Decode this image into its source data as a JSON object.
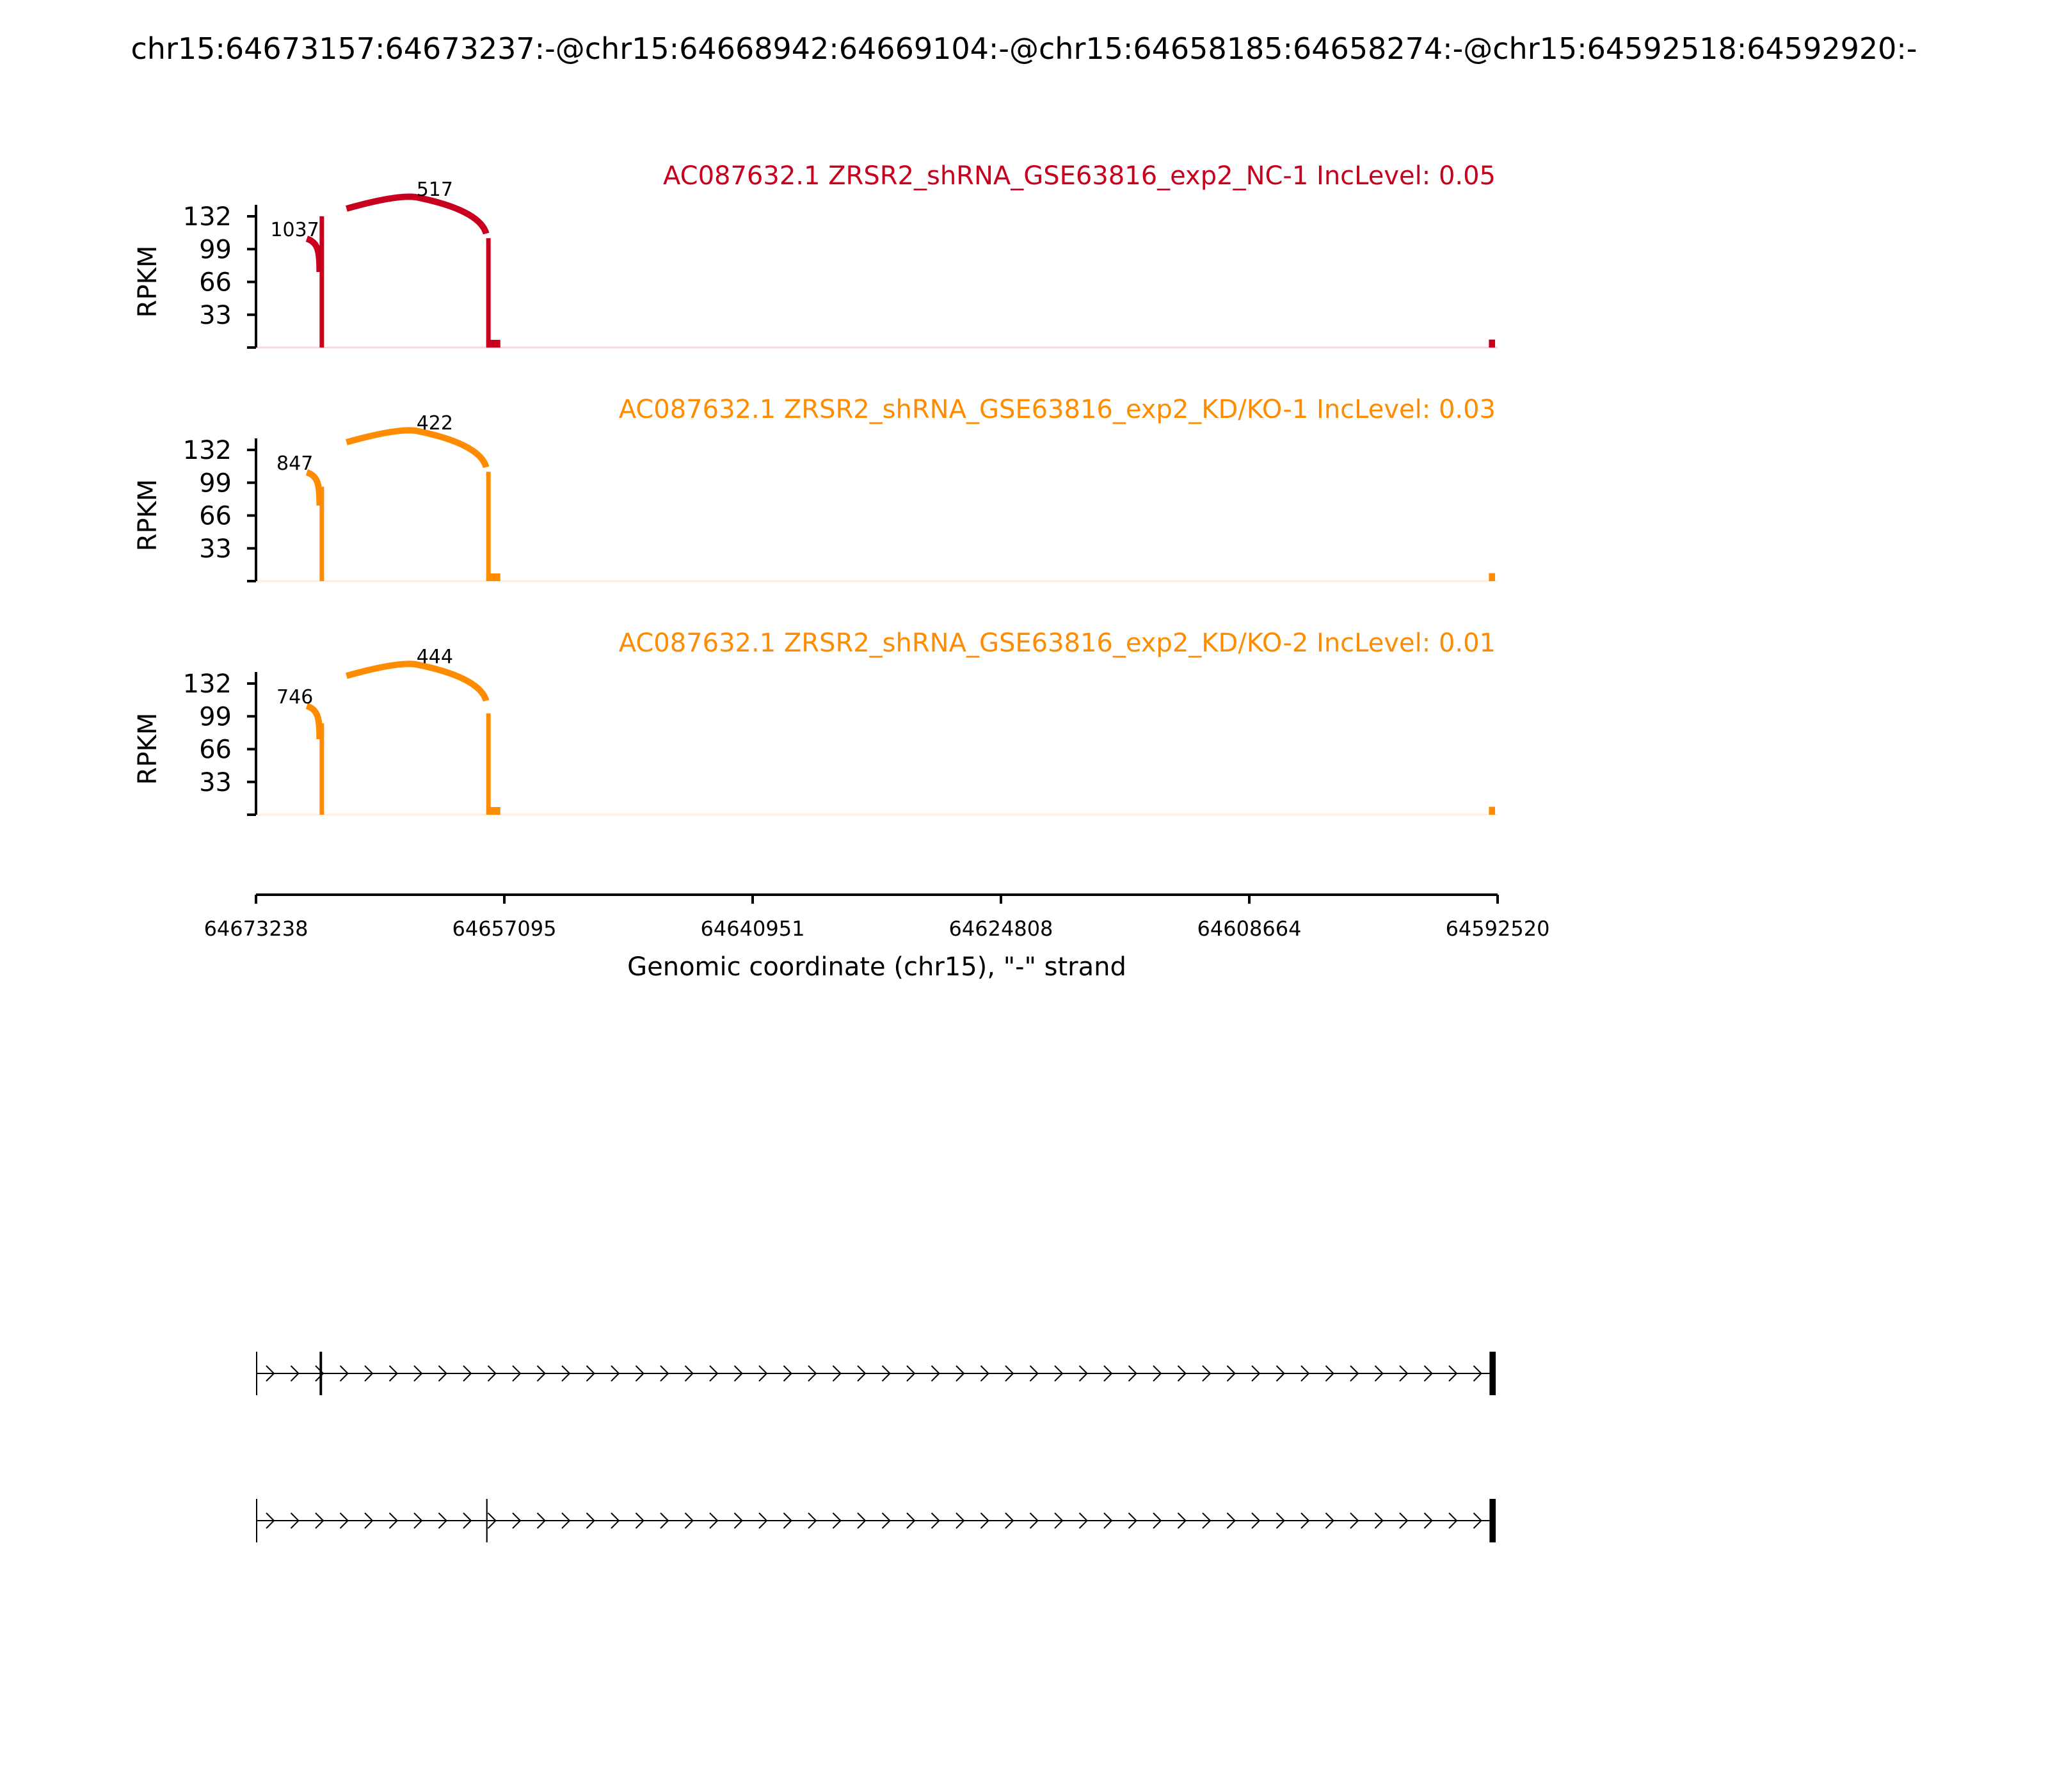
{
  "figure_title": "chr15:64673157:64673237:-@chr15:64668942:64669104:-@chr15:64658185:64658274:-@chr15:64592518:64592920:-",
  "chart_data": {
    "type": "area",
    "title": "chr15:64673157:64673237:-@chr15:64668942:64669104:-@chr15:64658185:64658274:-@chr15:64592518:64592920:-",
    "xlabel": "Genomic coordinate (chr15), \"-\" strand",
    "ylabel": "RPKM",
    "x_ticks": [
      "64673238",
      "64657095",
      "64640951",
      "64624808",
      "64608664",
      "64592520"
    ],
    "xlim": [
      64673238,
      64592520
    ],
    "y_ticks": [
      "33",
      "66",
      "99",
      "132"
    ],
    "ylim": [
      0,
      132
    ],
    "grid": false,
    "tracks": [
      {
        "name": "AC087632.1 ZRSR2_shRNA_GSE63816_exp2_NC-1 IncLevel: 0.05",
        "color": "#c8001e",
        "coverage": [
          {
            "start": 64669104,
            "end": 64668942,
            "height": 132
          },
          {
            "start": 64658274,
            "end": 64658185,
            "height": 110
          },
          {
            "start": 64592920,
            "end": 64592518,
            "height": 8
          }
        ],
        "junctions": [
          {
            "from": 64673157,
            "to": 64669104,
            "count": "1037"
          },
          {
            "from": 64669104,
            "to": 64658274,
            "count": "517"
          }
        ]
      },
      {
        "name": "AC087632.1 ZRSR2_shRNA_GSE63816_exp2_KD/KO-1 IncLevel: 0.03",
        "color": "#ff8c00",
        "coverage": [
          {
            "start": 64669104,
            "end": 64668942,
            "height": 95
          },
          {
            "start": 64658274,
            "end": 64658185,
            "height": 110
          },
          {
            "start": 64592920,
            "end": 64592518,
            "height": 8
          }
        ],
        "junctions": [
          {
            "from": 64673157,
            "to": 64669104,
            "count": "847"
          },
          {
            "from": 64669104,
            "to": 64658274,
            "count": "422"
          }
        ]
      },
      {
        "name": "AC087632.1 ZRSR2_shRNA_GSE63816_exp2_KD/KO-2 IncLevel: 0.01",
        "color": "#ff8c00",
        "coverage": [
          {
            "start": 64669104,
            "end": 64668942,
            "height": 92
          },
          {
            "start": 64658274,
            "end": 64658185,
            "height": 102
          },
          {
            "start": 64592920,
            "end": 64592518,
            "height": 8
          }
        ],
        "junctions": [
          {
            "from": 64673157,
            "to": 64669104,
            "count": "746"
          },
          {
            "from": 64669104,
            "to": 64658274,
            "count": "444"
          }
        ]
      }
    ],
    "isoforms": [
      {
        "exons": [
          [
            64673237,
            64673157
          ],
          [
            64669104,
            64668942
          ],
          [
            64592920,
            64592518
          ]
        ]
      },
      {
        "exons": [
          [
            64673237,
            64673157
          ],
          [
            64658274,
            64658185
          ],
          [
            64592920,
            64592518
          ]
        ]
      }
    ]
  }
}
